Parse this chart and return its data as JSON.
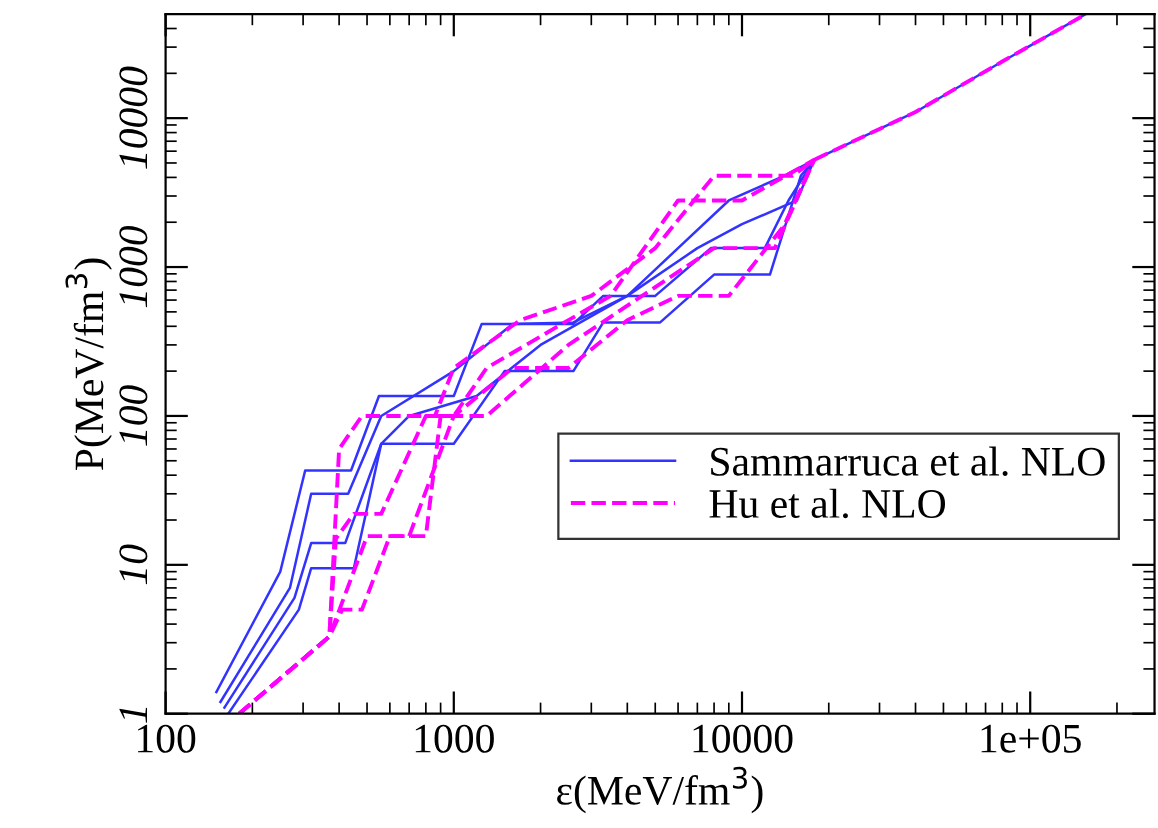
{
  "chart_data": {
    "type": "line",
    "xlabel": "ε(MeV/fm$^{3}$)",
    "ylabel": "P(MeV/fm$^{3}$)",
    "log": "xy",
    "xlim": [
      100,
      270000
    ],
    "ylim": [
      1,
      50000
    ],
    "xticks": [
      100,
      1000,
      10000,
      {
        "value": 100000,
        "label": "1e+05"
      }
    ],
    "yticks": [
      1,
      10,
      100,
      1000,
      10000
    ],
    "grid": false,
    "legend": "right",
    "marker": "none",
    "series": [
      {
        "name": "Sammarruca et al. NLO",
        "color": "#3333ff",
        "line_style": "solid",
        "x": [
          150,
          250,
          305,
          440,
          550,
          1000,
          1250,
          2600,
          3300,
          5000,
          7800,
          12000,
          14500,
          17800,
          40000,
          80000,
          156000
        ],
        "values": [
          1.4,
          9,
          43,
          43,
          136,
          136,
          415,
          415,
          640,
          640,
          1340,
          1340,
          2800,
          5250,
          11000,
          24000,
          50000
        ]
      },
      {
        "color": "#3333ff",
        "line_style": "solid",
        "x": [
          155,
          270,
          320,
          430,
          560,
          1000,
          1600,
          2600,
          4000,
          7000,
          10000,
          15500,
          17800
        ],
        "values": [
          1.2,
          7,
          30,
          30,
          100,
          200,
          415,
          425,
          640,
          1340,
          1940,
          2800,
          5250
        ]
      },
      {
        "color": "#3333ff",
        "line_style": "solid",
        "x": [
          160,
          280,
          320,
          420,
          560,
          1000,
          1500,
          2600,
          3300,
          5200,
          8000,
          12500,
          16000,
          17800
        ],
        "values": [
          1.1,
          6,
          14,
          14,
          65,
          65,
          200,
          200,
          425,
          425,
          890,
          890,
          4100,
          5250
        ]
      },
      {
        "color": "#3333ff",
        "line_style": "solid",
        "x": [
          165,
          290,
          320,
          450,
          560,
          700,
          1200,
          2000,
          4000,
          6000,
          9000,
          14000,
          17800
        ],
        "values": [
          1.0,
          5,
          9.5,
          9.5,
          65,
          100,
          136,
          300,
          640,
          1340,
          2800,
          4100,
          5250
        ]
      },
      {
        "name": "Hu et al. NLO",
        "color": "#ff00ff",
        "line_style": "dashed",
        "x": [
          180,
          370,
          400,
          480,
          860,
          1000,
          1700,
          3000,
          5000,
          8000,
          15000,
          17800,
          40000,
          80000,
          156000
        ],
        "values": [
          1,
          3.3,
          60,
          100,
          100,
          210,
          440,
          640,
          1340,
          4100,
          4100,
          5250,
          11000,
          24000,
          50000
        ]
      },
      {
        "color": "#ff00ff",
        "line_style": "dashed",
        "x": [
          180,
          370,
          390,
          450,
          560,
          800,
          1000,
          1300,
          2500,
          3500,
          6000,
          10000,
          17800
        ],
        "values": [
          1,
          3.3,
          15,
          22,
          22,
          100,
          100,
          210,
          440,
          640,
          2800,
          2800,
          5250
        ]
      },
      {
        "color": "#ff00ff",
        "line_style": "dashed",
        "x": [
          180,
          370,
          410,
          480,
          600,
          800,
          900,
          1300,
          2500,
          4500,
          8000,
          13000,
          17800
        ],
        "values": [
          1,
          3.3,
          5,
          5,
          15.6,
          15.6,
          100,
          100,
          300,
          640,
          1340,
          1340,
          5250
        ]
      },
      {
        "color": "#ff00ff",
        "line_style": "dashed",
        "x": [
          180,
          370,
          500,
          700,
          1000,
          1600,
          2500,
          4000,
          6000,
          9000,
          14000,
          17800
        ],
        "values": [
          1,
          3.3,
          15.6,
          15.6,
          100,
          210,
          210,
          440,
          640,
          640,
          1900,
          5250
        ]
      }
    ]
  }
}
